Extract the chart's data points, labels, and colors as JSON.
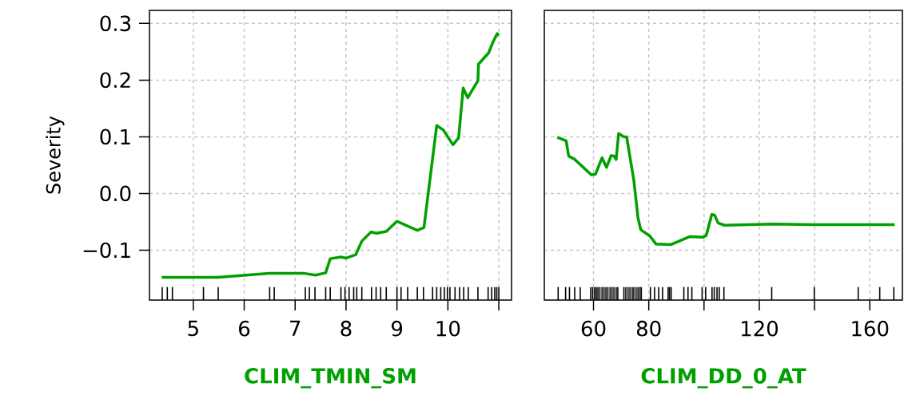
{
  "chart_data": [
    {
      "type": "line",
      "xlabel": "CLIM_TMIN_SM",
      "ylabel": "Severity",
      "xlim": [
        4.14,
        11.25
      ],
      "ylim": [
        -0.188,
        0.323
      ],
      "xticks": [
        5,
        6,
        7,
        8,
        9,
        10,
        {
          "value": 11,
          "label": null
        }
      ],
      "yticks": [
        {
          "value": -0.1,
          "label": "−0.1"
        },
        {
          "value": 0,
          "label": "0.0"
        },
        {
          "value": 0.1,
          "label": "0.1"
        },
        {
          "value": 0.2,
          "label": "0.2"
        },
        {
          "value": 0.3,
          "label": "0.3"
        }
      ],
      "grid": true,
      "series": [
        {
          "color": "#00a000",
          "x": [
            4.38,
            5.49,
            6.49,
            7.19,
            7.4,
            7.6,
            7.69,
            7.9,
            8.0,
            8.19,
            8.31,
            8.49,
            8.6,
            8.79,
            9.0,
            9.4,
            9.53,
            9.78,
            9.91,
            10.1,
            10.21,
            10.3,
            10.39,
            10.59,
            10.6,
            10.8,
            10.89,
            10.97,
            11.0
          ],
          "values": [
            -0.148,
            -0.148,
            -0.141,
            -0.141,
            -0.144,
            -0.14,
            -0.115,
            -0.112,
            -0.114,
            -0.108,
            -0.084,
            -0.068,
            -0.07,
            -0.067,
            -0.049,
            -0.065,
            -0.06,
            0.12,
            0.112,
            0.086,
            0.098,
            0.186,
            0.169,
            0.199,
            0.228,
            0.248,
            0.268,
            0.282,
            0.279
          ]
        },
        {
          "type": "bar",
          "color": "#000000",
          "x": [
            4.39,
            4.49,
            4.59,
            5.2,
            5.49,
            6.5,
            6.59,
            7.2,
            7.28,
            7.39,
            7.6,
            7.69,
            7.9,
            7.98,
            8.06,
            8.15,
            8.21,
            8.31,
            8.5,
            8.59,
            8.68,
            8.79,
            9.0,
            9.08,
            9.21,
            9.4,
            9.52,
            9.7,
            9.78,
            9.86,
            9.93,
            9.99,
            10.04,
            10.14,
            10.23,
            10.31,
            10.4,
            10.59,
            10.79,
            10.86,
            10.92,
            10.96,
            11.0
          ],
          "values": [
            0.023,
            0.023,
            0.023,
            0.023,
            0.023,
            0.023,
            0.023,
            0.023,
            0.023,
            0.023,
            0.023,
            0.023,
            0.023,
            0.023,
            0.023,
            0.023,
            0.023,
            0.023,
            0.023,
            0.023,
            0.023,
            0.023,
            0.023,
            0.023,
            0.023,
            0.023,
            0.023,
            0.023,
            0.023,
            0.023,
            0.023,
            0.023,
            0.023,
            0.023,
            0.023,
            0.023,
            0.023,
            0.023,
            0.023,
            0.023,
            0.023,
            0.023,
            0.023
          ],
          "base": [
            -0.188,
            -0.188,
            -0.188,
            -0.188,
            -0.188,
            -0.188,
            -0.188,
            -0.188,
            -0.188,
            -0.188,
            -0.188,
            -0.188,
            -0.188,
            -0.188,
            -0.188,
            -0.188,
            -0.188,
            -0.188,
            -0.188,
            -0.188,
            -0.188,
            -0.188,
            -0.188,
            -0.188,
            -0.188,
            -0.188,
            -0.188,
            -0.188,
            -0.188,
            -0.188,
            -0.188,
            -0.188,
            -0.188,
            -0.188,
            -0.188,
            -0.188,
            -0.188,
            -0.188,
            -0.188,
            -0.188,
            -0.188,
            -0.188,
            -0.188
          ]
        }
      ]
    },
    {
      "type": "line",
      "xlabel": "CLIM_DD_0_AT",
      "xlim": [
        42.2,
        171.8
      ],
      "ylim": [
        -0.188,
        0.323
      ],
      "xticks": [
        60,
        80,
        {
          "value": 100,
          "label": null
        },
        120,
        {
          "value": 140,
          "label": null
        },
        160
      ],
      "yticks": [
        {
          "value": -0.1,
          "label": null
        },
        {
          "value": 0,
          "label": null
        },
        {
          "value": 0.1,
          "label": null
        },
        {
          "value": 0.2,
          "label": null
        },
        {
          "value": 0.3,
          "label": null
        }
      ],
      "tick_labels": "x",
      "grid": true,
      "series": [
        {
          "color": "#00a000",
          "x": [
            46.9,
            50.1,
            51.0,
            53.0,
            59.2,
            60.7,
            63.1,
            64.7,
            66.4,
            67.4,
            68.2,
            69.1,
            71.0,
            72.0,
            74.6,
            76.1,
            77.1,
            80.4,
            82.6,
            88.1,
            94.9,
            99.7,
            100.8,
            102.8,
            103.8,
            105.1,
            107.4,
            124.7,
            142.1,
            169.0
          ],
          "values": [
            0.099,
            0.093,
            0.066,
            0.061,
            0.033,
            0.034,
            0.063,
            0.046,
            0.067,
            0.066,
            0.06,
            0.106,
            0.1,
            0.1,
            0.023,
            -0.043,
            -0.064,
            -0.075,
            -0.089,
            -0.09,
            -0.076,
            -0.077,
            -0.074,
            -0.037,
            -0.038,
            -0.052,
            -0.056,
            -0.054,
            -0.055,
            -0.055
          ]
        },
        {
          "type": "bar",
          "color": "#000000",
          "x": [
            47.2,
            49.9,
            51.3,
            53.2,
            55.2,
            59.0,
            59.7,
            60.4,
            61.0,
            61.6,
            62.3,
            63.1,
            63.8,
            64.5,
            65.2,
            66.0,
            66.7,
            67.4,
            68.2,
            68.8,
            71.0,
            71.7,
            72.5,
            73.2,
            74.0,
            74.6,
            75.4,
            76.1,
            76.8,
            77.3,
            80.6,
            82.1,
            83.6,
            85.0,
            87.0,
            87.5,
            88.1,
            92.7,
            94.2,
            95.6,
            99.3,
            100.6,
            102.9,
            103.7,
            104.7,
            105.5,
            107.2,
            124.5,
            139.9,
            155.8,
            163.6,
            168.7
          ],
          "values": [
            0.023,
            0.023,
            0.023,
            0.023,
            0.023,
            0.023,
            0.023,
            0.023,
            0.023,
            0.023,
            0.023,
            0.023,
            0.023,
            0.023,
            0.023,
            0.023,
            0.023,
            0.023,
            0.023,
            0.023,
            0.023,
            0.023,
            0.023,
            0.023,
            0.023,
            0.023,
            0.023,
            0.023,
            0.023,
            0.023,
            0.023,
            0.023,
            0.023,
            0.023,
            0.023,
            0.023,
            0.023,
            0.023,
            0.023,
            0.023,
            0.023,
            0.023,
            0.023,
            0.023,
            0.023,
            0.023,
            0.023,
            0.023,
            0.023,
            0.023,
            0.023,
            0.023
          ],
          "base": [
            -0.188,
            -0.188,
            -0.188,
            -0.188,
            -0.188,
            -0.188,
            -0.188,
            -0.188,
            -0.188,
            -0.188,
            -0.188,
            -0.188,
            -0.188,
            -0.188,
            -0.188,
            -0.188,
            -0.188,
            -0.188,
            -0.188,
            -0.188,
            -0.188,
            -0.188,
            -0.188,
            -0.188,
            -0.188,
            -0.188,
            -0.188,
            -0.188,
            -0.188,
            -0.188,
            -0.188,
            -0.188,
            -0.188,
            -0.188,
            -0.188,
            -0.188,
            -0.188,
            -0.188,
            -0.188,
            -0.188,
            -0.188,
            -0.188,
            -0.188,
            -0.188,
            -0.188,
            -0.188,
            -0.188,
            -0.188,
            -0.188,
            -0.188,
            -0.188,
            -0.188
          ]
        }
      ]
    }
  ]
}
